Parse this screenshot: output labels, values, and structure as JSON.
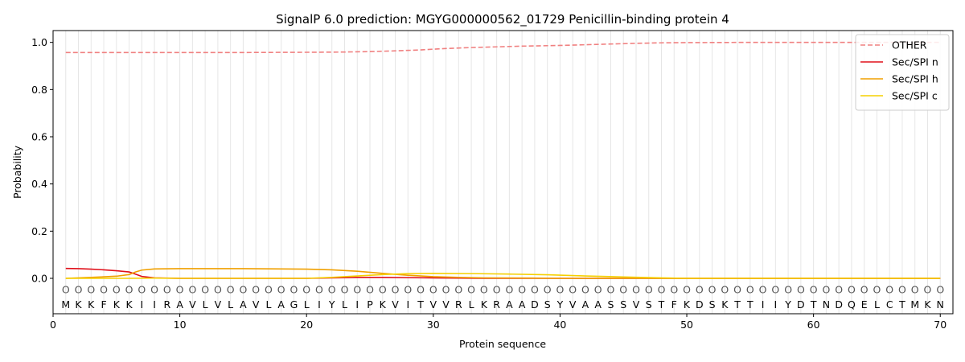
{
  "chart_data": {
    "type": "line",
    "title": "SignalP 6.0 prediction: MGYG000000562_01729 Penicillin-binding protein 4",
    "xlabel": "Protein sequence",
    "ylabel": "Probability",
    "xlim": [
      0,
      71
    ],
    "ylim": [
      -0.15,
      1.05
    ],
    "x_ticks": [
      0,
      10,
      20,
      30,
      40,
      50,
      60,
      70
    ],
    "y_ticks": [
      0.0,
      0.2,
      0.4,
      0.6,
      0.8,
      1.0
    ],
    "x_tick_labels": [
      "0",
      "10",
      "20",
      "30",
      "40",
      "50",
      "60",
      "70"
    ],
    "y_tick_labels": [
      "0.0",
      "0.2",
      "0.4",
      "0.6",
      "0.8",
      "1.0"
    ],
    "grid": "vertical lines at each residue",
    "legend_position": "top-right",
    "sequence": [
      "M",
      "K",
      "K",
      "F",
      "K",
      "K",
      "I",
      "I",
      "R",
      "A",
      "V",
      "L",
      "V",
      "L",
      "A",
      "V",
      "L",
      "A",
      "G",
      "L",
      "I",
      "Y",
      "L",
      "I",
      "P",
      "K",
      "V",
      "I",
      "T",
      "V",
      "V",
      "R",
      "L",
      "K",
      "R",
      "A",
      "A",
      "D",
      "S",
      "Y",
      "V",
      "A",
      "A",
      "S",
      "S",
      "V",
      "S",
      "T",
      "F",
      "K",
      "D",
      "S",
      "K",
      "T",
      "T",
      "I",
      "I",
      "Y",
      "D",
      "T",
      "N",
      "D",
      "Q",
      "E",
      "L",
      "C",
      "T",
      "M",
      "K",
      "N"
    ],
    "prediction_symbol": "O",
    "series": [
      {
        "name": "OTHER",
        "color": "#f08080",
        "dash": "dashed",
        "points": [
          [
            1,
            0.957
          ],
          [
            5,
            0.957
          ],
          [
            10,
            0.957
          ],
          [
            15,
            0.957
          ],
          [
            20,
            0.958
          ],
          [
            23,
            0.959
          ],
          [
            25,
            0.961
          ],
          [
            27,
            0.964
          ],
          [
            29,
            0.968
          ],
          [
            31,
            0.974
          ],
          [
            33,
            0.978
          ],
          [
            35,
            0.981
          ],
          [
            37,
            0.984
          ],
          [
            40,
            0.987
          ],
          [
            42,
            0.99
          ],
          [
            44,
            0.993
          ],
          [
            46,
            0.996
          ],
          [
            48,
            0.998
          ],
          [
            50,
            0.999
          ],
          [
            55,
            1.0
          ],
          [
            60,
            1.0
          ],
          [
            65,
            1.0
          ],
          [
            70,
            1.0
          ]
        ]
      },
      {
        "name": "Sec/SPI n",
        "color": "#e0101a",
        "dash": "solid",
        "points": [
          [
            1,
            0.042
          ],
          [
            2,
            0.041
          ],
          [
            3,
            0.039
          ],
          [
            4,
            0.036
          ],
          [
            5,
            0.032
          ],
          [
            6,
            0.027
          ],
          [
            6.5,
            0.018
          ],
          [
            7,
            0.008
          ],
          [
            8,
            0.002
          ],
          [
            10,
            0.0
          ],
          [
            20,
            0.0
          ],
          [
            22,
            0.002
          ],
          [
            24,
            0.004
          ],
          [
            26,
            0.004
          ],
          [
            28,
            0.003
          ],
          [
            30,
            0.002
          ],
          [
            32,
            0.001
          ],
          [
            34,
            0.0
          ],
          [
            40,
            0.0
          ],
          [
            50,
            0.0
          ],
          [
            60,
            0.0
          ],
          [
            70,
            0.0
          ]
        ]
      },
      {
        "name": "Sec/SPI h",
        "color": "#f0a000",
        "dash": "solid",
        "points": [
          [
            1,
            0.0
          ],
          [
            3,
            0.004
          ],
          [
            5,
            0.009
          ],
          [
            6,
            0.016
          ],
          [
            6.5,
            0.027
          ],
          [
            7,
            0.035
          ],
          [
            8,
            0.04
          ],
          [
            10,
            0.041
          ],
          [
            15,
            0.041
          ],
          [
            20,
            0.039
          ],
          [
            22,
            0.036
          ],
          [
            24,
            0.03
          ],
          [
            26,
            0.021
          ],
          [
            28,
            0.013
          ],
          [
            30,
            0.007
          ],
          [
            32,
            0.004
          ],
          [
            34,
            0.002
          ],
          [
            38,
            0.001
          ],
          [
            40,
            0.0
          ],
          [
            50,
            0.0
          ],
          [
            60,
            0.0
          ],
          [
            70,
            0.0
          ]
        ]
      },
      {
        "name": "Sec/SPI c",
        "color": "#f5d000",
        "dash": "solid",
        "points": [
          [
            1,
            0.0
          ],
          [
            6,
            0.0
          ],
          [
            8,
            0.001
          ],
          [
            10,
            0.0
          ],
          [
            20,
            0.0
          ],
          [
            22,
            0.004
          ],
          [
            24,
            0.01
          ],
          [
            26,
            0.016
          ],
          [
            28,
            0.02
          ],
          [
            30,
            0.021
          ],
          [
            33,
            0.02
          ],
          [
            36,
            0.018
          ],
          [
            39,
            0.015
          ],
          [
            42,
            0.01
          ],
          [
            45,
            0.006
          ],
          [
            48,
            0.002
          ],
          [
            50,
            0.0
          ],
          [
            60,
            0.0
          ],
          [
            70,
            0.0
          ]
        ]
      }
    ]
  }
}
